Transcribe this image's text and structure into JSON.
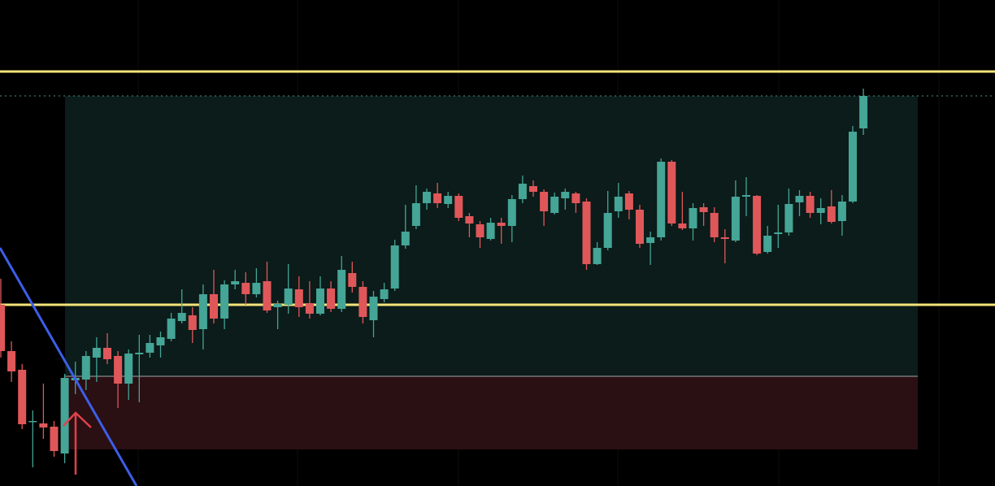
{
  "chart_data": {
    "type": "candlestick",
    "ylim": [
      0,
      598
    ],
    "up_color": "#45a596",
    "down_color": "#e0575a",
    "open": [
      223,
      166,
      143,
      79,
      77,
      73,
      40,
      130,
      131,
      158,
      170,
      160,
      126,
      162,
      164,
      173,
      181,
      203,
      210,
      193,
      236,
      206,
      248,
      250,
      236,
      252,
      220,
      223,
      242,
      225,
      212,
      243,
      218,
      262,
      245,
      204,
      230,
      243,
      296,
      320,
      348,
      360,
      347,
      357,
      332,
      322,
      304,
      324,
      320,
      353,
      369,
      362,
      336,
      354,
      360,
      350,
      273,
      293,
      338,
      360,
      340,
      299,
      306,
      399,
      323,
      317,
      343,
      336,
      306,
      302,
      356,
      357,
      288,
      310,
      312,
      349,
      357,
      336,
      344,
      326,
      350,
      440
    ],
    "high": [
      255,
      178,
      150,
      93,
      126,
      80,
      138,
      153,
      166,
      183,
      188,
      166,
      168,
      186,
      186,
      190,
      213,
      242,
      220,
      248,
      266,
      253,
      266,
      263,
      268,
      276,
      228,
      273,
      258,
      252,
      258,
      252,
      283,
      276,
      252,
      240,
      250,
      303,
      346,
      370,
      366,
      373,
      362,
      360,
      336,
      326,
      330,
      330,
      358,
      382,
      376,
      365,
      361,
      366,
      362,
      354,
      300,
      363,
      373,
      363,
      346,
      313,
      403,
      401,
      362,
      348,
      348,
      343,
      316,
      376,
      380,
      358,
      320,
      346,
      366,
      364,
      362,
      354,
      364,
      358,
      443,
      489
    ],
    "low": [
      158,
      128,
      70,
      23,
      58,
      36,
      28,
      113,
      118,
      128,
      150,
      96,
      106,
      103,
      158,
      158,
      178,
      200,
      176,
      168,
      200,
      193,
      242,
      223,
      232,
      213,
      193,
      212,
      208,
      206,
      210,
      214,
      214,
      238,
      200,
      183,
      226,
      240,
      292,
      316,
      340,
      342,
      342,
      326,
      306,
      293,
      302,
      298,
      300,
      348,
      356,
      320,
      334,
      340,
      336,
      266,
      272,
      290,
      330,
      328,
      293,
      272,
      302,
      320,
      315,
      302,
      320,
      300,
      274,
      300,
      332,
      284,
      286,
      293,
      308,
      332,
      330,
      322,
      323,
      308,
      348,
      432
    ],
    "close": [
      166,
      141,
      76,
      80,
      72,
      43,
      133,
      133,
      160,
      170,
      156,
      126,
      163,
      164,
      176,
      183,
      206,
      213,
      192,
      236,
      206,
      248,
      252,
      236,
      250,
      216,
      224,
      243,
      220,
      212,
      243,
      218,
      266,
      245,
      208,
      233,
      242,
      296,
      313,
      348,
      362,
      348,
      357,
      330,
      323,
      306,
      324,
      320,
      353,
      372,
      362,
      338,
      356,
      362,
      348,
      273,
      293,
      336,
      356,
      340,
      298,
      306,
      399,
      323,
      317,
      342,
      337,
      306,
      304,
      356,
      358,
      286,
      308,
      312,
      347,
      357,
      336,
      342,
      325,
      350,
      436,
      480
    ],
    "levels": [
      {
        "value": 510,
        "color": "#f3e47a"
      },
      {
        "value": 223,
        "color": "#f3e47a"
      },
      {
        "value": 480,
        "color": "#4f8f88"
      }
    ],
    "zones": [
      {
        "from": 135,
        "to": 480,
        "color": "#0b1c1a"
      },
      {
        "from": 45,
        "to": 135,
        "color": "#2a0f13"
      }
    ]
  }
}
